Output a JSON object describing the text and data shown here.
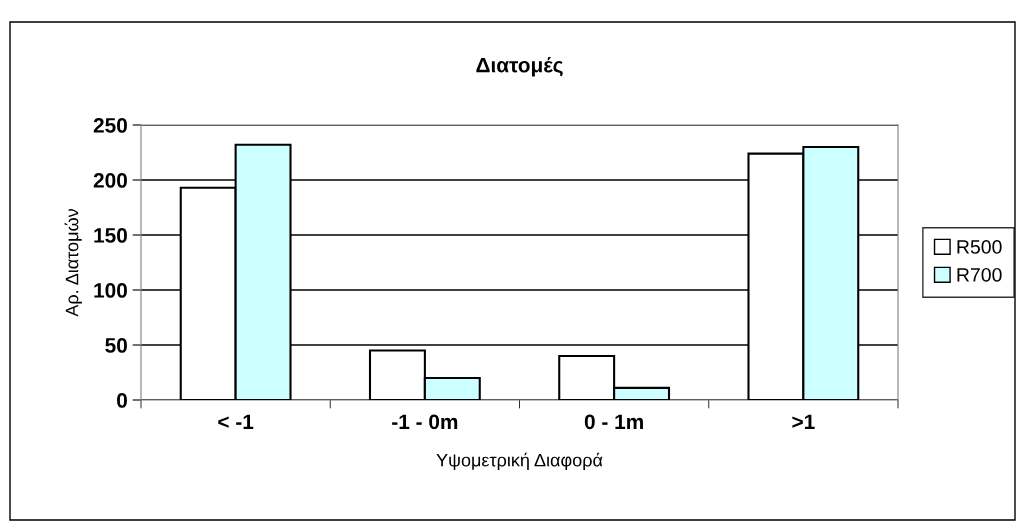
{
  "chart_data": {
    "type": "bar",
    "title": "Διατομές",
    "xlabel": "Υψομετρική Διαφορά",
    "ylabel": "Αρ. Διατομών",
    "categories": [
      "< -1",
      "-1 - 0m",
      "0 - 1m",
      ">1"
    ],
    "series": [
      {
        "name": "R500",
        "color": "#ffffff",
        "values": [
          193,
          45,
          40,
          224
        ]
      },
      {
        "name": "R700",
        "color": "#ccffff",
        "values": [
          232,
          20,
          11,
          230
        ]
      }
    ],
    "ylim": [
      0,
      250
    ],
    "yticks": [
      0,
      50,
      100,
      150,
      200,
      250
    ],
    "grid": "y",
    "legend": "right"
  }
}
